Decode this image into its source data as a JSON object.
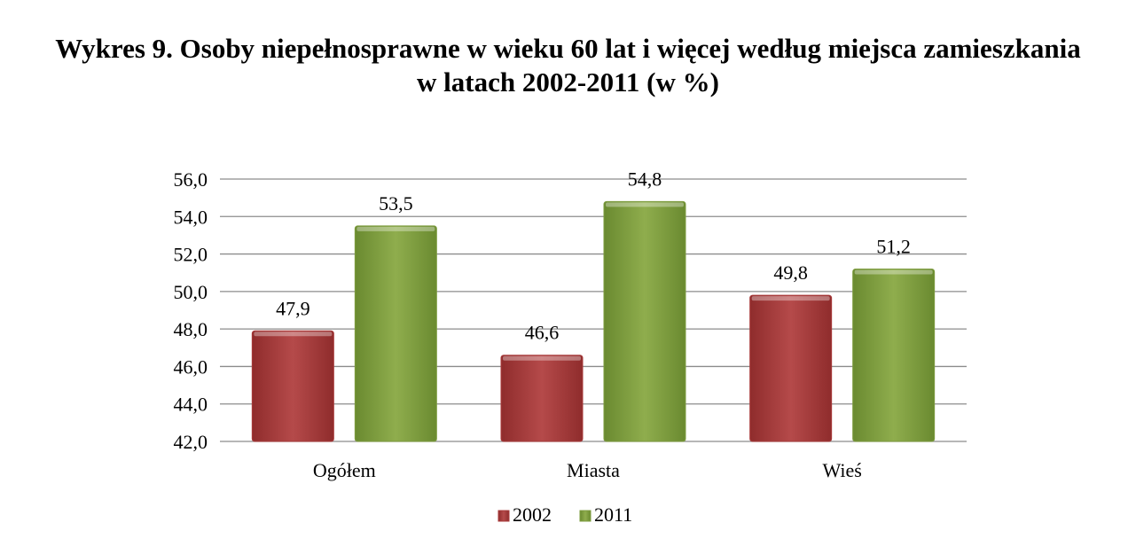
{
  "chart_data": {
    "type": "bar",
    "title_lines": [
      "Wykres 9. Osoby niepełnosprawne w wieku 60 lat i więcej według miejsca zamieszkania",
      "w latach 2002-2011 (w %)"
    ],
    "categories": [
      "Ogółem",
      "Miasta",
      "Wieś"
    ],
    "series": [
      {
        "name": "2002",
        "values": [
          47.9,
          46.6,
          49.8
        ],
        "labels": [
          "47,9",
          "46,6",
          "49,8"
        ],
        "color": "#a83a3a"
      },
      {
        "name": "2011",
        "values": [
          53.5,
          54.8,
          51.2
        ],
        "labels": [
          "53,5",
          "54,8",
          "51,2"
        ],
        "color": "#7d9c3f"
      }
    ],
    "ylim": [
      42,
      56
    ],
    "yticks": [
      42,
      44,
      46,
      48,
      50,
      52,
      54,
      56
    ],
    "ytick_labels": [
      "42,0",
      "44,0",
      "46,0",
      "48,0",
      "50,0",
      "52,0",
      "54,0",
      "56,0"
    ],
    "grid": true,
    "legend_position": "bottom"
  }
}
